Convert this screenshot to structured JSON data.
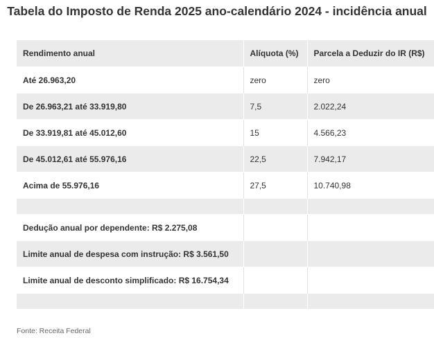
{
  "title": "Tabela do Imposto de Renda 2025 ano-calendário 2024 - incidência anual",
  "table": {
    "headers": [
      "Rendimento anual",
      "Alíquota (%)",
      "Parcela a Deduzir do IR (R$)"
    ],
    "rows": [
      [
        "Até 26.963,20",
        "zero",
        "zero"
      ],
      [
        "De 26.963,21 até 33.919,80",
        "7,5",
        "2.022,24"
      ],
      [
        "De 33.919,81 até 45.012,60",
        "15",
        "4.566,23"
      ],
      [
        "De 45.012,61 até 55.976,16",
        "22,5",
        "7.942,17"
      ],
      [
        "Acima de 55.976,16",
        "27,5",
        "10.740,98"
      ],
      [
        "",
        "",
        ""
      ],
      [
        "Dedução anual por dependente: R$ 2.275,08",
        "",
        ""
      ],
      [
        "Limite anual de despesa com instrução: R$ 3.561,50",
        "",
        ""
      ],
      [
        "Limite anual de desconto simplificado: R$ 16.754,34",
        "",
        ""
      ],
      [
        "",
        "",
        ""
      ]
    ]
  },
  "source": "Fonte: Receita Federal",
  "colors": {
    "header_bg": "#ebebeb",
    "row_shade": "#ebebeb",
    "text": "#333333"
  }
}
